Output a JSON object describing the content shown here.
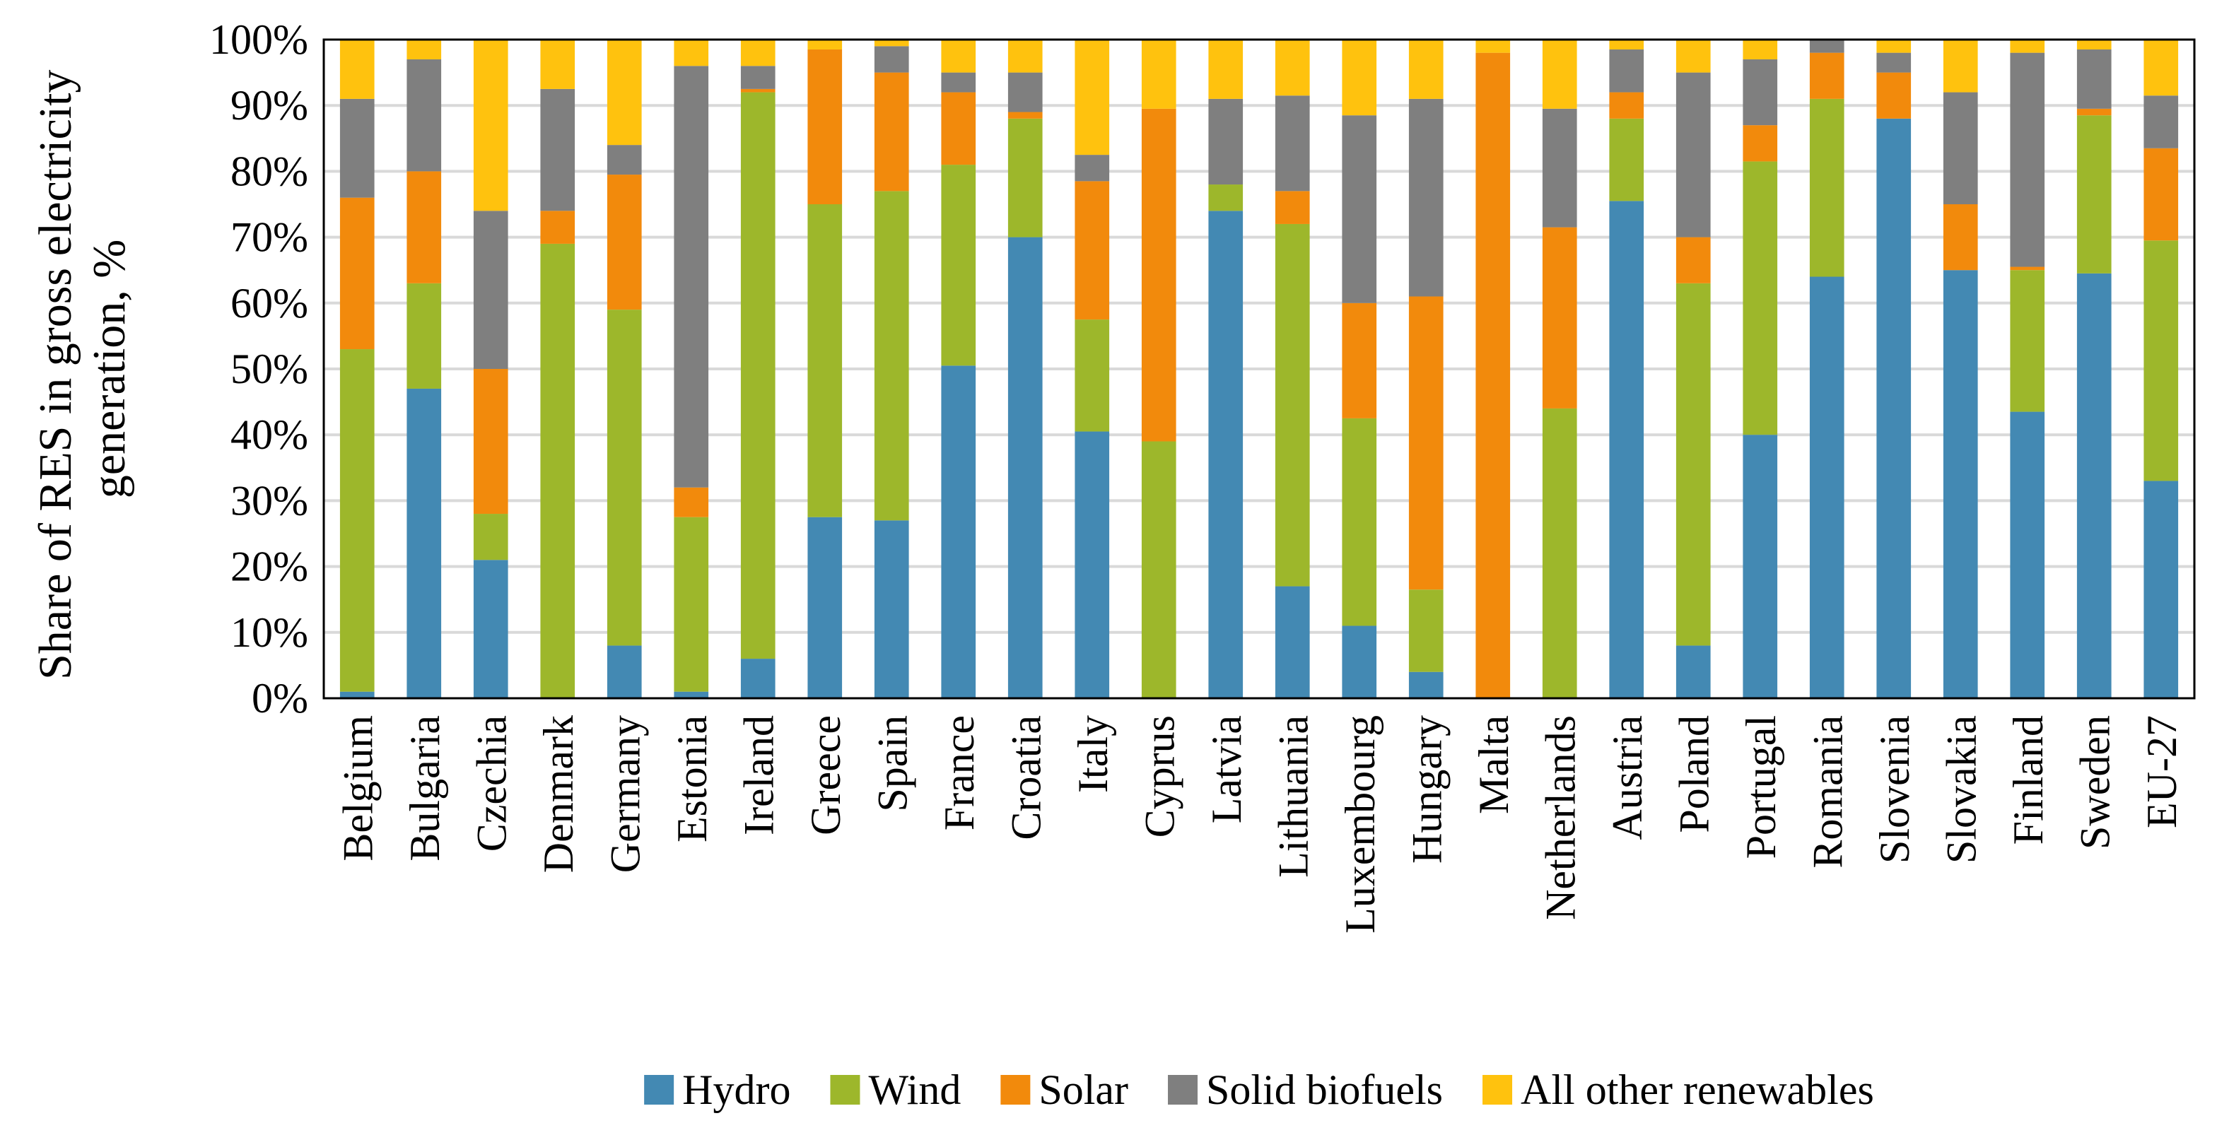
{
  "chart_data": {
    "type": "bar",
    "stacked": true,
    "title": "",
    "xlabel": "",
    "ylabel_lines": [
      "Share of RES in gross electricity",
      "generation, %"
    ],
    "ylim": [
      0,
      100
    ],
    "y_ticks": [
      "0%",
      "10%",
      "20%",
      "30%",
      "40%",
      "50%",
      "60%",
      "70%",
      "80%",
      "90%",
      "100%"
    ],
    "grid": true,
    "legend_position": "bottom",
    "categories": [
      "Belgium",
      "Bulgaria",
      "Czechia",
      "Denmark",
      "Germany",
      "Estonia",
      "Ireland",
      "Greece",
      "Spain",
      "France",
      "Croatia",
      "Italy",
      "Cyprus",
      "Latvia",
      "Lithuania",
      "Luxembourg",
      "Hungary",
      "Malta",
      "Netherlands",
      "Austria",
      "Poland",
      "Portugal",
      "Romania",
      "Slovenia",
      "Slovakia",
      "Finland",
      "Sweden",
      "EU-27"
    ],
    "series": [
      {
        "name": "Hydro",
        "color": "#4389B3",
        "values": [
          1,
          47,
          21,
          0,
          8,
          1,
          6,
          27.5,
          27,
          50.5,
          70,
          40.5,
          0,
          74,
          17,
          11,
          4,
          0,
          0,
          75.5,
          8,
          40,
          64,
          88,
          65,
          43.5,
          64.5,
          33
        ]
      },
      {
        "name": "Wind",
        "color": "#9DB72B",
        "values": [
          52,
          16,
          7,
          69,
          51,
          26.5,
          86,
          47.5,
          50,
          30.5,
          18,
          17,
          39,
          4,
          55,
          31.5,
          12.5,
          0,
          44,
          12.5,
          55,
          41.5,
          27,
          0,
          0,
          21.5,
          24,
          36.5
        ]
      },
      {
        "name": "Solar",
        "color": "#F28A0C",
        "values": [
          23,
          17,
          22,
          5,
          20.5,
          4.5,
          0.5,
          23.5,
          18,
          11,
          1,
          21,
          50.5,
          0,
          5,
          17.5,
          44.5,
          98,
          27.5,
          4,
          7,
          5.5,
          7,
          7,
          10,
          0.5,
          1,
          14
        ]
      },
      {
        "name": "Solid biofuels",
        "color": "#7F7F7F",
        "values": [
          15,
          17,
          24,
          18.5,
          4.5,
          64,
          3.5,
          0,
          4,
          3,
          6,
          4,
          0,
          13,
          14.5,
          28.5,
          30,
          0,
          18,
          6.5,
          25,
          10,
          2,
          3,
          17,
          32.5,
          9,
          8
        ]
      },
      {
        "name": "All other renewables",
        "color": "#FFC20E",
        "values": [
          9,
          3,
          26,
          7.5,
          16,
          4,
          4,
          1.5,
          1,
          5,
          5,
          17.5,
          10.5,
          9,
          8.5,
          11.5,
          9,
          2,
          10.5,
          1.5,
          5,
          3,
          0,
          2,
          8,
          2,
          1.5,
          8.5
        ]
      }
    ]
  }
}
